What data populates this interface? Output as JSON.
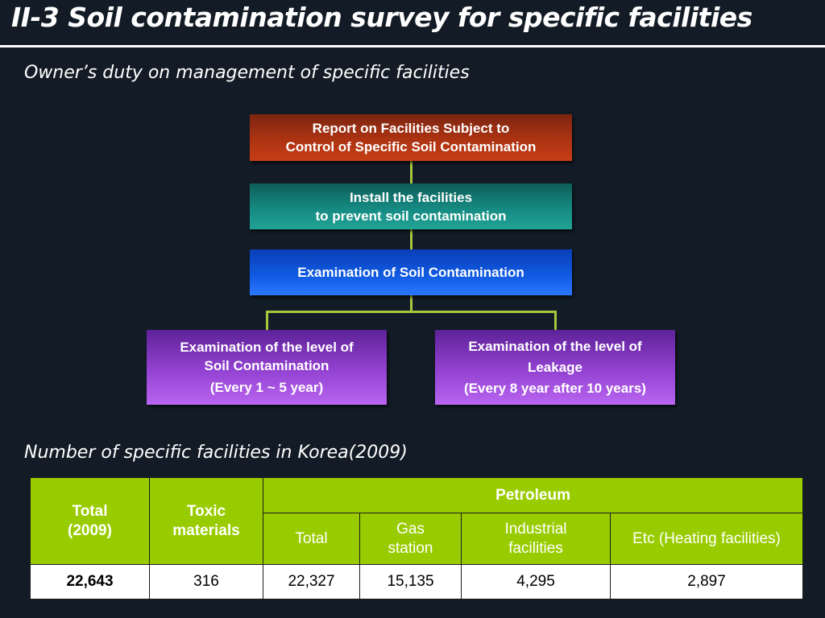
{
  "slide": {
    "title": "II-3 Soil contamination survey for specific facilities"
  },
  "duty_section": {
    "heading": "Owner’s duty on management of specific facilities"
  },
  "flow": {
    "report": {
      "line1": "Report on Facilities Subject to",
      "line2": "Control of Specific Soil Contamination"
    },
    "install": {
      "line1": "Install the facilities",
      "line2": "to prevent soil contamination"
    },
    "examination": {
      "line1": "Examination of Soil Contamination"
    },
    "soil_level": {
      "line1": "Examination of the level of",
      "line2": "Soil Contamination",
      "line3": "(Every 1 ~ 5 year)"
    },
    "leakage": {
      "line1": "Examination of the level of",
      "line2": "Leakage",
      "line3": "(Every 8 year after 10 years)"
    },
    "connector_color": "#a8c83c"
  },
  "table_section": {
    "heading": "Number of specific facilities in Korea(2009)"
  },
  "table": {
    "header": {
      "total_line1": "Total",
      "total_line2": "(2009)",
      "toxic_line1": "Toxic",
      "toxic_line2": "materials",
      "petroleum": "Petroleum",
      "petro_total": "Total",
      "gas_line1": "Gas",
      "gas_line2": "station",
      "industrial_line1": "Industrial",
      "industrial_line2": "facilities",
      "etc": "Etc (Heating facilities)"
    },
    "row": [
      "22,643",
      "316",
      "22,327",
      "15,135",
      "4,295",
      "2,897"
    ],
    "header_color": "#99cc00"
  }
}
